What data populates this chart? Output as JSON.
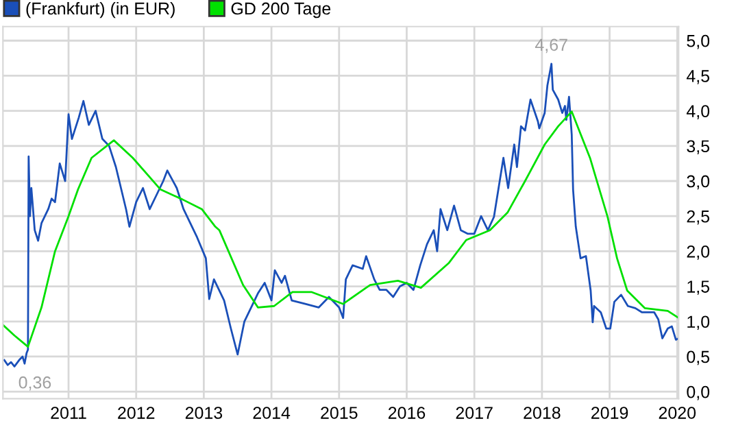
{
  "chart_data": {
    "type": "line",
    "legend": "top left",
    "grid": true,
    "marker": "none",
    "line_style": "solid",
    "xlim": [
      2010.03,
      2020.02
    ],
    "xticks": [
      2011,
      2012,
      2013,
      2014,
      2015,
      2016,
      2017,
      2018,
      2019,
      2020
    ],
    "ylim": [
      -0.1,
      5.2
    ],
    "yticks": [
      {
        "value": 0,
        "label": "0,0"
      },
      {
        "value": 0.5,
        "label": "0,5"
      },
      {
        "value": 1,
        "label": "1,0"
      },
      {
        "value": 1.5,
        "label": "1,5"
      },
      {
        "value": 2,
        "label": "2,0"
      },
      {
        "value": 2.5,
        "label": "2,5"
      },
      {
        "value": 3,
        "label": "3,0"
      },
      {
        "value": 3.5,
        "label": "3,5"
      },
      {
        "value": 4,
        "label": "4,0"
      },
      {
        "value": 4.5,
        "label": "4,5"
      },
      {
        "value": 5,
        "label": "5,0"
      }
    ],
    "annotations": [
      {
        "text": "4,67",
        "x": 2018.14,
        "y": 4.67
      },
      {
        "text": "0,36",
        "x": 2010.2,
        "y": 0.36
      }
    ],
    "series": [
      {
        "name": "(Frankfurt) (in EUR)",
        "color": "#1a4fb8",
        "x": [
          2010.05,
          2010.1,
          2010.15,
          2010.2,
          2010.27,
          2010.32,
          2010.35,
          2010.38,
          2010.4,
          2010.41,
          2010.43,
          2010.45,
          2010.5,
          2010.55,
          2010.6,
          2010.7,
          2010.75,
          2010.8,
          2010.87,
          2010.95,
          2011.0,
          2011.05,
          2011.15,
          2011.22,
          2011.3,
          2011.4,
          2011.5,
          2011.6,
          2011.7,
          2011.8,
          2011.85,
          2011.9,
          2012.0,
          2012.1,
          2012.2,
          2012.3,
          2012.4,
          2012.46,
          2012.6,
          2012.7,
          2012.8,
          2012.9,
          2013.03,
          2013.08,
          2013.15,
          2013.3,
          2013.4,
          2013.5,
          2013.6,
          2013.7,
          2013.8,
          2013.9,
          2014.0,
          2014.05,
          2014.15,
          2014.2,
          2014.3,
          2014.5,
          2014.7,
          2014.85,
          2015.0,
          2015.06,
          2015.1,
          2015.2,
          2015.35,
          2015.4,
          2015.52,
          2015.6,
          2015.7,
          2015.8,
          2015.9,
          2016.0,
          2016.1,
          2016.2,
          2016.3,
          2016.4,
          2016.45,
          2016.5,
          2016.6,
          2016.7,
          2016.8,
          2016.9,
          2017.0,
          2017.1,
          2017.2,
          2017.29,
          2017.43,
          2017.5,
          2017.59,
          2017.63,
          2017.69,
          2017.75,
          2017.83,
          2017.94,
          2017.96,
          2018.04,
          2018.08,
          2018.14,
          2018.16,
          2018.24,
          2018.3,
          2018.34,
          2018.36,
          2018.4,
          2018.44,
          2018.46,
          2018.5,
          2018.57,
          2018.65,
          2018.72,
          2018.75,
          2018.77,
          2018.87,
          2018.95,
          2019.01,
          2019.07,
          2019.17,
          2019.27,
          2019.38,
          2019.48,
          2019.66,
          2019.72,
          2019.78,
          2019.86,
          2019.92,
          2019.98,
          2020.02
        ],
        "values": [
          0.45,
          0.38,
          0.42,
          0.36,
          0.45,
          0.5,
          0.4,
          0.55,
          0.6,
          3.35,
          2.5,
          2.9,
          2.3,
          2.15,
          2.4,
          2.6,
          2.75,
          2.7,
          3.25,
          3.0,
          3.95,
          3.6,
          3.9,
          4.14,
          3.8,
          4.0,
          3.6,
          3.5,
          3.2,
          2.8,
          2.6,
          2.35,
          2.7,
          2.9,
          2.6,
          2.8,
          3.0,
          3.15,
          2.9,
          2.6,
          2.4,
          2.2,
          1.9,
          1.32,
          1.6,
          1.3,
          0.9,
          0.53,
          1.0,
          1.2,
          1.4,
          1.55,
          1.3,
          1.73,
          1.55,
          1.65,
          1.3,
          1.25,
          1.2,
          1.35,
          1.2,
          1.05,
          1.6,
          1.8,
          1.75,
          1.93,
          1.6,
          1.45,
          1.45,
          1.35,
          1.5,
          1.55,
          1.45,
          1.8,
          2.1,
          2.3,
          2.0,
          2.6,
          2.3,
          2.65,
          2.3,
          2.25,
          2.25,
          2.5,
          2.3,
          2.49,
          3.33,
          2.9,
          3.52,
          3.2,
          3.78,
          3.72,
          4.16,
          3.85,
          3.75,
          3.97,
          4.36,
          4.67,
          4.3,
          4.16,
          3.97,
          4.07,
          3.87,
          4.2,
          3.66,
          2.88,
          2.35,
          1.9,
          1.93,
          1.44,
          0.99,
          1.22,
          1.13,
          0.9,
          0.9,
          1.28,
          1.38,
          1.22,
          1.19,
          1.13,
          1.13,
          1.03,
          0.76,
          0.9,
          0.93,
          0.74,
          0.76
        ]
      },
      {
        "name": "GD 200 Tage",
        "color": "#00e000",
        "x": [
          2010.03,
          2010.2,
          2010.4,
          2010.6,
          2010.8,
          2011.0,
          2011.14,
          2011.34,
          2011.67,
          2011.95,
          2012.36,
          2012.68,
          2012.97,
          2013.17,
          2013.23,
          2013.58,
          2013.8,
          2014.04,
          2014.31,
          2014.59,
          2015.06,
          2015.4,
          2015.46,
          2015.87,
          2016.21,
          2016.62,
          2016.88,
          2017.23,
          2017.49,
          2017.75,
          2018.04,
          2018.24,
          2018.44,
          2018.71,
          2018.97,
          2019.11,
          2019.26,
          2019.52,
          2019.86,
          2020.02
        ],
        "values": [
          0.95,
          0.8,
          0.64,
          1.2,
          2.0,
          2.5,
          2.88,
          3.33,
          3.58,
          3.33,
          2.88,
          2.74,
          2.6,
          2.35,
          2.3,
          1.52,
          1.2,
          1.22,
          1.42,
          1.42,
          1.25,
          1.48,
          1.52,
          1.58,
          1.48,
          1.83,
          2.16,
          2.3,
          2.55,
          3.0,
          3.52,
          3.78,
          3.99,
          3.33,
          2.49,
          1.9,
          1.44,
          1.19,
          1.15,
          1.05
        ]
      }
    ]
  }
}
